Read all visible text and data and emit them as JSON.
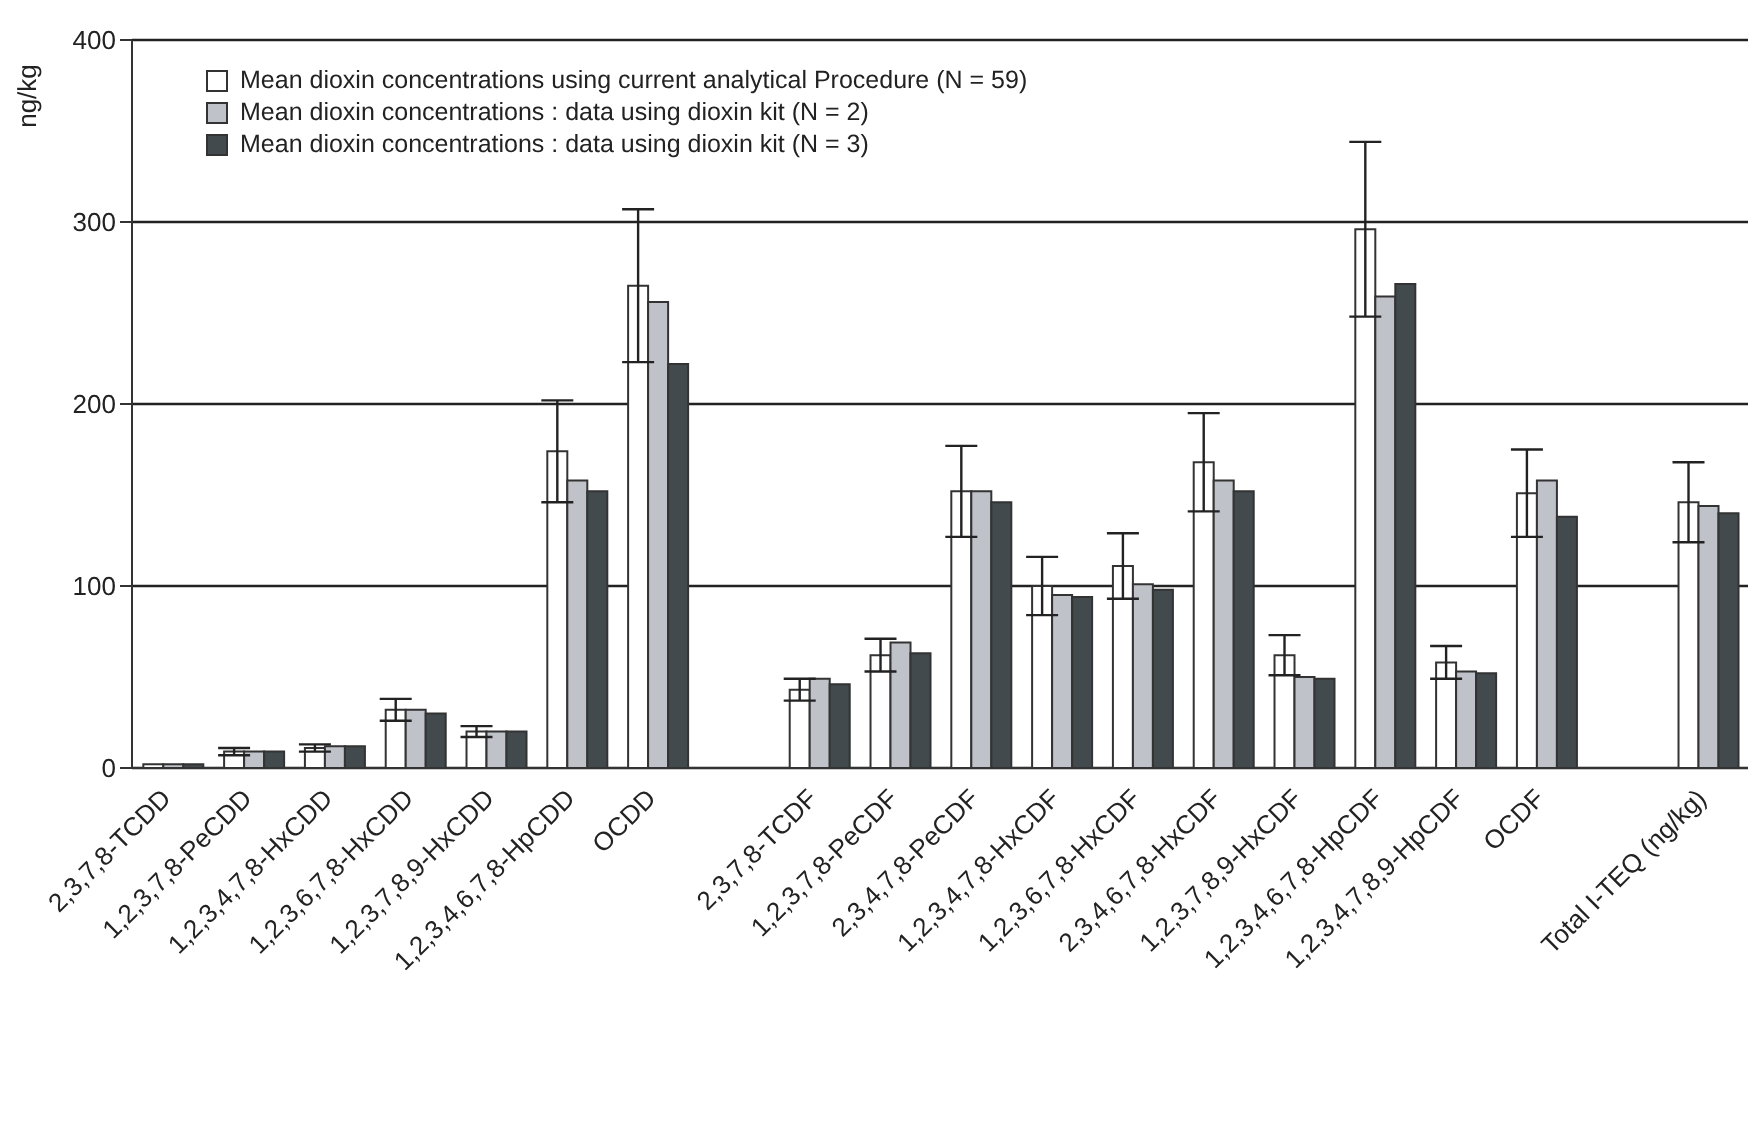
{
  "chart_data": {
    "type": "bar",
    "ylabel": "ng/kg",
    "categories": [
      "2,3,7,8-TCDD",
      "1,2,3,7,8-PeCDD",
      "1,2,3,4,7,8-HxCDD",
      "1,2,3,6,7,8-HxCDD",
      "1,2,3,7,8,9-HxCDD",
      "1,2,3,4,6,7,8-HpCDD",
      "OCDD",
      null,
      "2,3,7,8-TCDF",
      "1,2,3,7,8-PeCDF",
      "2,3,4,7,8-PeCDF",
      "1,2,3,4,7,8-HxCDF",
      "1,2,3,6,7,8-HxCDF",
      "2,3,4,6,7,8-HxCDF",
      "1,2,3,7,8,9-HxCDF",
      "1,2,3,4,6,7,8-HpCDF",
      "1,2,3,4,7,8,9-HpCDF",
      "OCDF",
      null,
      "Total I-TEQ (ng/kg)"
    ],
    "series": [
      {
        "name": "Mean dioxin concentrations using current analytical Procedure (N = 59)",
        "color": "#ffffff",
        "values": [
          2,
          9,
          11,
          32,
          20,
          174,
          265,
          null,
          43,
          62,
          152,
          100,
          111,
          168,
          62,
          296,
          58,
          151,
          null,
          146
        ],
        "errors": [
          null,
          2,
          2,
          6,
          3,
          28,
          42,
          null,
          6,
          9,
          25,
          16,
          18,
          27,
          11,
          48,
          9,
          24,
          null,
          22
        ]
      },
      {
        "name": "Mean dioxin concentrations : data using dioxin kit (N = 2)",
        "color": "#bfc3c9",
        "values": [
          2,
          9,
          12,
          32,
          20,
          158,
          256,
          null,
          49,
          69,
          152,
          95,
          101,
          158,
          50,
          259,
          53,
          158,
          null,
          144
        ]
      },
      {
        "name": "Mean dioxin concentrations : data using dioxin kit (N = 3)",
        "color": "#424a4d",
        "values": [
          2,
          9,
          12,
          30,
          20,
          152,
          222,
          null,
          46,
          63,
          146,
          94,
          98,
          152,
          49,
          266,
          52,
          138,
          null,
          140
        ]
      }
    ],
    "ylim": [
      0,
      400
    ],
    "yticks": [
      0,
      100,
      200,
      300,
      400
    ],
    "grid": "y",
    "legend": "top left"
  }
}
